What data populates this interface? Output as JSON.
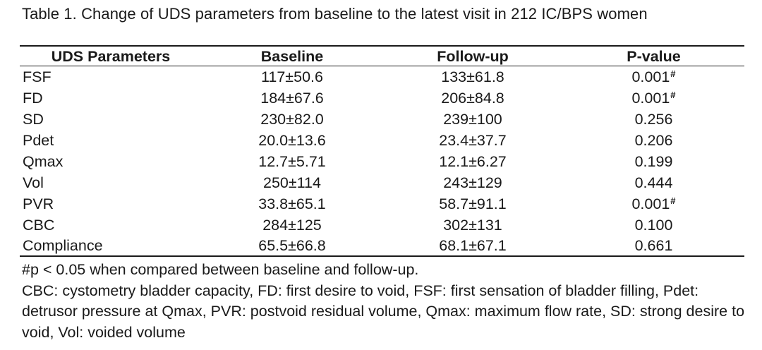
{
  "caption": "Table 1. Change of UDS parameters from baseline to the latest visit in 212 IC/BPS women",
  "table": {
    "headers": [
      "UDS Parameters",
      "Baseline",
      "Follow-up",
      "P-value"
    ],
    "rows": [
      {
        "param": "FSF",
        "baseline": "117±50.6",
        "followup": "133±61.8",
        "p": "0.001",
        "mark": "#"
      },
      {
        "param": "FD",
        "baseline": "184±67.6",
        "followup": "206±84.8",
        "p": "0.001",
        "mark": "#"
      },
      {
        "param": "SD",
        "baseline": "230±82.0",
        "followup": "239±100",
        "p": "0.256",
        "mark": ""
      },
      {
        "param": "Pdet",
        "baseline": "20.0±13.6",
        "followup": "23.4±37.7",
        "p": "0.206",
        "mark": ""
      },
      {
        "param": "Qmax",
        "baseline": "12.7±5.71",
        "followup": "12.1±6.27",
        "p": "0.199",
        "mark": ""
      },
      {
        "param": "Vol",
        "baseline": "250±114",
        "followup": "243±129",
        "p": "0.444",
        "mark": ""
      },
      {
        "param": "PVR",
        "baseline": "33.8±65.1",
        "followup": "58.7±91.1",
        "p": "0.001",
        "mark": "#"
      },
      {
        "param": "CBC",
        "baseline": "284±125",
        "followup": "302±131",
        "p": "0.100",
        "mark": ""
      },
      {
        "param": "Compliance",
        "baseline": "65.5±66.8",
        "followup": "68.1±67.1",
        "p": "0.661",
        "mark": ""
      }
    ]
  },
  "footnotes": {
    "significance": "#p < 0.05 when compared between baseline and follow-up.",
    "abbreviations": "CBC: cystometry bladder capacity, FD: first desire to void, FSF: first sensation of bladder filling, Pdet: detrusor pressure at Qmax, PVR: postvoid residual volume, Qmax: maximum flow rate, SD: strong desire to void, Vol: voided volume"
  }
}
